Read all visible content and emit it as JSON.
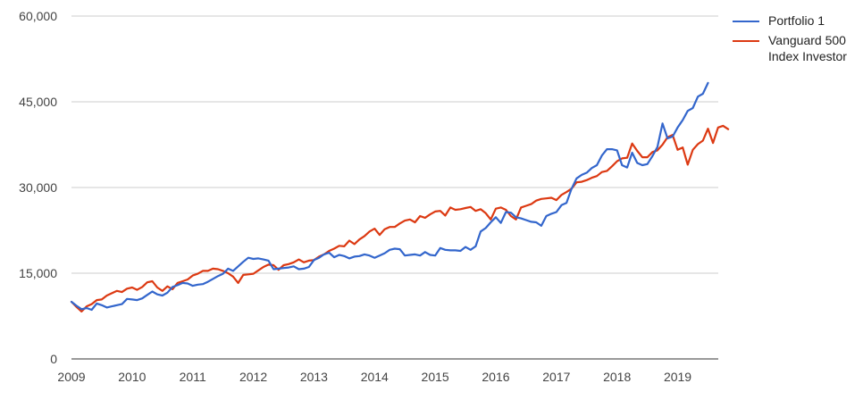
{
  "chart_data": {
    "type": "line",
    "title": "",
    "xlabel": "",
    "ylabel": "",
    "x_start": 2009.0,
    "x_step": 0.0833333,
    "xlim": [
      2009,
      2019.67
    ],
    "ylim": [
      0,
      60000
    ],
    "x_ticks": [
      2009,
      2010,
      2011,
      2012,
      2013,
      2014,
      2015,
      2016,
      2017,
      2018,
      2019
    ],
    "x_tick_labels": [
      "2009",
      "2010",
      "2011",
      "2012",
      "2013",
      "2014",
      "2015",
      "2016",
      "2017",
      "2018",
      "2019"
    ],
    "y_ticks": [
      0,
      15000,
      30000,
      45000,
      60000
    ],
    "y_tick_labels": [
      "0",
      "15,000",
      "30,000",
      "45,000",
      "60,000"
    ],
    "grid": true,
    "legend_position": "right",
    "series": [
      {
        "name": "Portfolio 1",
        "color": "#3366cc",
        "values": [
          10000,
          9300,
          8700,
          8900,
          8600,
          9700,
          9400,
          9000,
          9200,
          9400,
          9600,
          10500,
          10400,
          10300,
          10600,
          11200,
          11800,
          11300,
          11100,
          11600,
          12600,
          12900,
          13300,
          13200,
          12800,
          13000,
          13100,
          13500,
          14000,
          14500,
          14900,
          15800,
          15400,
          16200,
          17000,
          17700,
          17500,
          17600,
          17400,
          17200,
          15700,
          15800,
          15900,
          16000,
          16200,
          15700,
          15800,
          16100,
          17300,
          17700,
          18300,
          18600,
          17800,
          18200,
          18000,
          17600,
          17900,
          18000,
          18300,
          18100,
          17700,
          18100,
          18500,
          19100,
          19300,
          19200,
          18100,
          18200,
          18300,
          18100,
          18700,
          18200,
          18100,
          19400,
          19100,
          19000,
          19000,
          18900,
          19600,
          19100,
          19700,
          22300,
          22900,
          23900,
          24800,
          23800,
          25700,
          25600,
          24800,
          24600,
          24300,
          24000,
          23900,
          23300,
          25000,
          25400,
          25700,
          26900,
          27300,
          29800,
          31600,
          32200,
          32600,
          33400,
          33900,
          35600,
          36700,
          36700,
          36500,
          33900,
          33500,
          36100,
          34300,
          33900,
          34100,
          35500,
          37100,
          41200,
          38600,
          38900,
          40500,
          41800,
          43400,
          43900,
          45900,
          46400,
          48300
        ]
      },
      {
        "name": "Vanguard 500 Index Investor",
        "color": "#dc3912",
        "values": [
          10000,
          9100,
          8300,
          9200,
          9600,
          10300,
          10400,
          11100,
          11500,
          11900,
          11700,
          12300,
          12500,
          12100,
          12600,
          13400,
          13600,
          12500,
          11900,
          12700,
          12200,
          13300,
          13600,
          13900,
          14600,
          14900,
          15400,
          15400,
          15800,
          15700,
          15400,
          15000,
          14400,
          13300,
          14700,
          14800,
          14900,
          15500,
          16100,
          16500,
          16400,
          15600,
          16400,
          16600,
          16900,
          17400,
          16900,
          17200,
          17300,
          17900,
          18300,
          18900,
          19300,
          19800,
          19700,
          20700,
          20100,
          20900,
          21500,
          22300,
          22800,
          21700,
          22700,
          23100,
          23100,
          23700,
          24200,
          24400,
          23900,
          25000,
          24700,
          25300,
          25800,
          25900,
          25100,
          26500,
          26100,
          26200,
          26400,
          26600,
          25900,
          26200,
          25500,
          24400,
          26300,
          26500,
          26100,
          25000,
          24400,
          26500,
          26800,
          27100,
          27700,
          28000,
          28100,
          28200,
          27800,
          28700,
          29200,
          29800,
          30900,
          31000,
          31300,
          31700,
          32000,
          32700,
          32900,
          33700,
          34600,
          35100,
          35200,
          37700,
          36400,
          35300,
          35300,
          36200,
          36500,
          37500,
          38800,
          39200,
          36600,
          37000,
          34000,
          36600,
          37600,
          38200,
          40300,
          37800,
          40500,
          40800,
          40200
        ]
      }
    ]
  },
  "legend": {
    "items": [
      {
        "label_line1": "Portfolio 1",
        "label_line2": "",
        "color": "#3366cc"
      },
      {
        "label_line1": "Vanguard 500",
        "label_line2": "Index Investor",
        "color": "#dc3912"
      }
    ]
  }
}
